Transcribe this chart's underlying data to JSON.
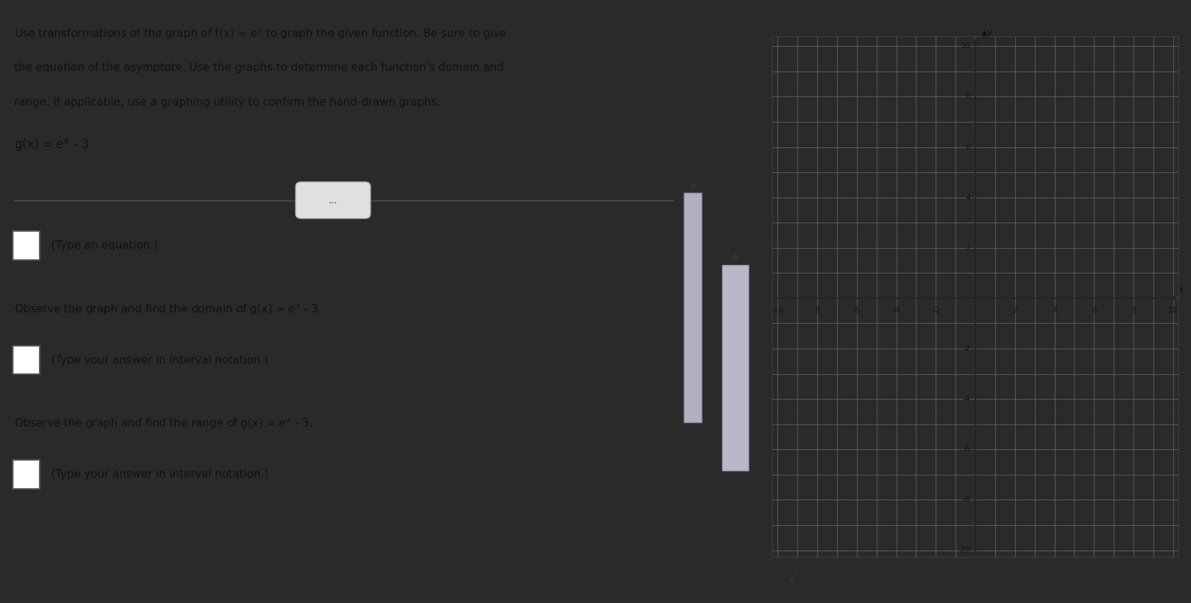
{
  "bg_color": "#2a2a2a",
  "panel_bg": "#c8c8c8",
  "graph_bg": "#d0d0d0",
  "text_color": "#111111",
  "xlim": [
    -10,
    10
  ],
  "ylim": [
    -10,
    10
  ],
  "xticks": [
    -10,
    -8,
    -6,
    -4,
    -2,
    2,
    4,
    6,
    8,
    10
  ],
  "yticks": [
    -10,
    -8,
    -6,
    -4,
    -2,
    2,
    4,
    6,
    8,
    10
  ],
  "title_lines": [
    "Use transformations of the graph of f(x) = $e^x$ to graph the given function. Be sure to give",
    "the equation of the asymptote. Use the graphs to determine each function's domain and",
    "range. If applicable, use a graphing utility to confirm the hand-drawn graphs."
  ],
  "function_label": "g(x) = $e^x$ - 3",
  "sep_button_text": "...",
  "hint1": "(Type an equation.)",
  "domain_prompt": "Observe the graph and find the domain of g(x) = $e^x$ - 3.",
  "hint2": "(Type your answer in interval notation.)",
  "range_prompt": "Observe the graph and find the range of g(x) = $e^x$ - 3.",
  "hint3": "(Type your answer in interval notation.)"
}
